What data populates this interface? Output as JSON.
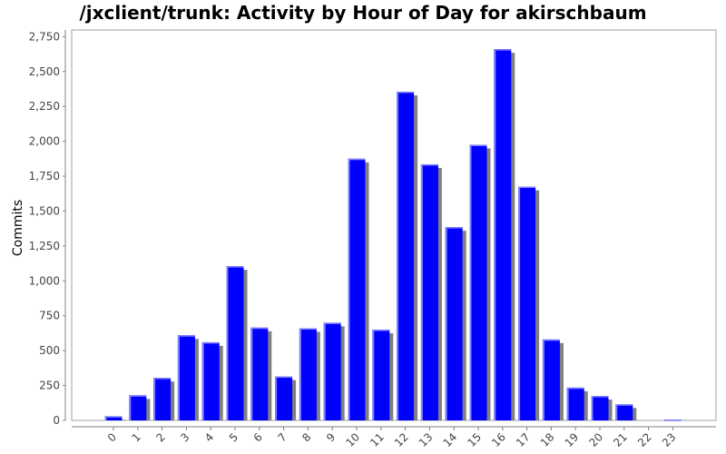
{
  "chart_data": {
    "type": "bar",
    "title": "/jxclient/trunk: Activity by Hour of Day for akirschbaum",
    "xlabel": "",
    "ylabel": "Commits",
    "categories": [
      "0",
      "1",
      "2",
      "3",
      "4",
      "5",
      "6",
      "7",
      "8",
      "9",
      "10",
      "11",
      "12",
      "13",
      "14",
      "15",
      "16",
      "17",
      "18",
      "19",
      "20",
      "21",
      "22",
      "23"
    ],
    "values": [
      30,
      180,
      305,
      610,
      560,
      1105,
      665,
      315,
      660,
      700,
      1875,
      650,
      2355,
      1835,
      1385,
      1975,
      2660,
      1675,
      580,
      235,
      175,
      115,
      0,
      5
    ],
    "ylim": [
      0,
      2800
    ],
    "yticks": [
      0,
      250,
      500,
      750,
      1000,
      1250,
      1500,
      1750,
      2000,
      2250,
      2500,
      2750
    ],
    "ytick_labels": [
      "0",
      "250",
      "500",
      "750",
      "1,000",
      "1,250",
      "1,500",
      "1,750",
      "2,000",
      "2,250",
      "2,500",
      "2,750"
    ],
    "bar_color": "#0000ff",
    "bar_highlight_color": "#8080ff",
    "shadow_color": "#808080",
    "grid": false,
    "legend": "none"
  }
}
